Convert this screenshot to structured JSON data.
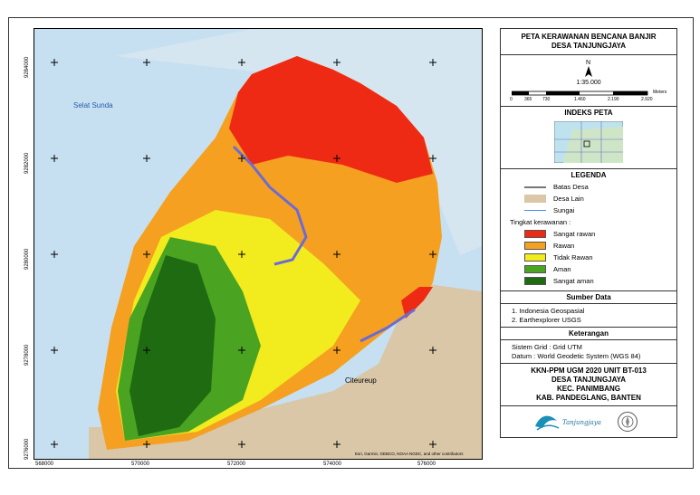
{
  "map": {
    "place_labels": {
      "sea": "Selat Sunda",
      "town": "Citeureup"
    },
    "attribution": "Esri, Garmin, GEBCO, NOAA NGDC, and other contributors",
    "x_ticks": [
      "568000",
      "570000",
      "572000",
      "574000",
      "576000"
    ],
    "y_ticks": [
      "9284000",
      "9282000",
      "9280000",
      "9278000",
      "9276000"
    ],
    "colors": {
      "sea": "#c6e0f2",
      "land_other": "#d9c7a8",
      "sangat_rawan": "#ee2a14",
      "rawan": "#f5a020",
      "tidak_rawan": "#f2ec1e",
      "aman": "#4aa421",
      "sangat_aman": "#1f6b12",
      "river": "#6b6bd6"
    }
  },
  "panel": {
    "title_line1": "PETA KERAWANAN BENCANA BANJIR",
    "title_line2": "DESA TANJUNGJAYA",
    "north": "N",
    "scale_text": "1:35.000",
    "scale_ticks": [
      "0",
      "365",
      "730",
      "1.460",
      "2.190",
      "2.920"
    ],
    "scale_unit": "Meters",
    "index_title": "INDEKS PETA",
    "legend_title": "LEGENDA",
    "legend_lines": [
      {
        "label": "Batas Desa",
        "color": "#777777"
      },
      {
        "label": "Desa Lain",
        "color": "#d9c7a8"
      },
      {
        "label": "Sungai",
        "color": "#4a90e2"
      }
    ],
    "legend_level_title": "Tingkat kerawanan :",
    "legend_levels": [
      {
        "label": "Sangat rawan",
        "color": "#ee2a14"
      },
      {
        "label": "Rawan",
        "color": "#f5a020"
      },
      {
        "label": "Tidak Rawan",
        "color": "#f2ec1e"
      },
      {
        "label": "Aman",
        "color": "#4aa421"
      },
      {
        "label": "Sangat aman",
        "color": "#1f6b12"
      }
    ],
    "sources_title": "Sumber Data",
    "sources": [
      "1. Indonesia Geospasial",
      "2. Earthexplorer USGS"
    ],
    "notes_title": "Keterangan",
    "notes": [
      "Sistem Grid  : Grid UTM",
      "Datum  : World Geodetic System (WGS 84)"
    ],
    "credits": [
      "KKN-PPM UGM 2020 UNIT BT-013",
      "DESA TANJUNGJAYA",
      "KEC. PANIMBANG",
      "KAB. PANDEGLANG, BANTEN"
    ],
    "logo_text": "Tanjungjaya"
  }
}
